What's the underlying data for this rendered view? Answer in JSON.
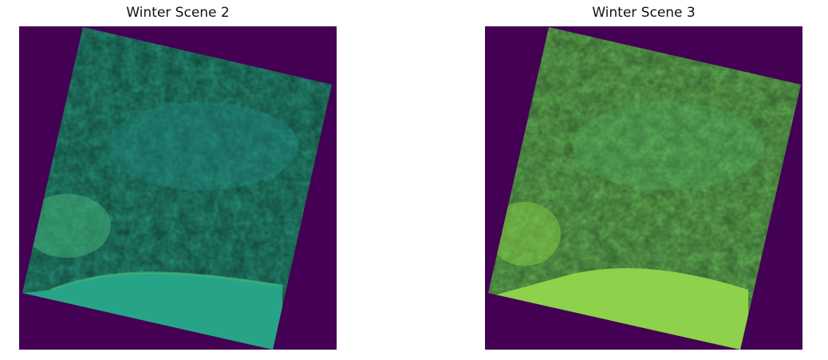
{
  "figure": {
    "panels": [
      {
        "title": "Winter Scene 2",
        "background_color": "#440154",
        "scene_base_color": "#29a286",
        "scene_variation_color": "#45b57a",
        "scene_dark_color": "#218b87",
        "water_color": "#27a487"
      },
      {
        "title": "Winter Scene 3",
        "background_color": "#440154",
        "scene_base_color": "#6cc45d",
        "scene_variation_color": "#88d046",
        "scene_dark_color": "#4fb86a",
        "water_color": "#8dd24a"
      }
    ]
  }
}
